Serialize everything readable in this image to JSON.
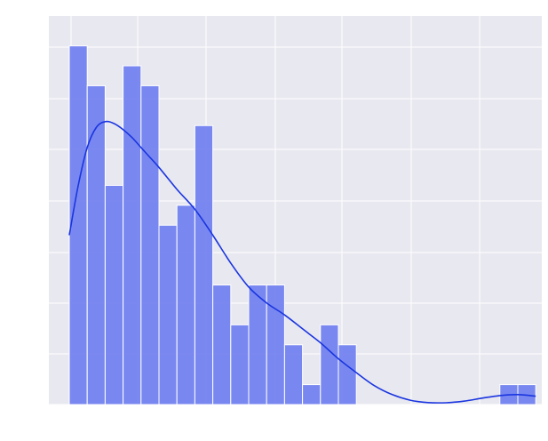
{
  "chart_data": {
    "type": "bar",
    "title": "",
    "xlabel": "",
    "ylabel": "",
    "grid": true,
    "legend": "none",
    "bar_color": "#6f7ff0",
    "bar_edge_color": "#ffffff",
    "kde_color": "#1a35e0",
    "plot_background": "#e8e8f0",
    "x_range": [
      0,
      25
    ],
    "y_range": [
      0,
      19.5
    ],
    "x_ticks": [
      0,
      1,
      2,
      3,
      4,
      5,
      6
    ],
    "y_ticks": [
      0,
      1,
      2,
      3,
      4,
      5,
      6,
      7
    ],
    "x_tick_labels": [
      "",
      "",
      "",
      "",
      "",
      "",
      ""
    ],
    "y_tick_labels": [
      "",
      "",
      "",
      "",
      "",
      "",
      "",
      ""
    ],
    "bins": [
      {
        "start": 0,
        "end": 1,
        "count": 18
      },
      {
        "start": 1,
        "end": 2,
        "count": 16
      },
      {
        "start": 2,
        "end": 3,
        "count": 11
      },
      {
        "start": 3,
        "end": 4,
        "count": 17
      },
      {
        "start": 4,
        "end": 5,
        "count": 16
      },
      {
        "start": 5,
        "end": 6,
        "count": 9
      },
      {
        "start": 6,
        "end": 7,
        "count": 10
      },
      {
        "start": 7,
        "end": 8,
        "count": 14
      },
      {
        "start": 8,
        "end": 9,
        "count": 6
      },
      {
        "start": 9,
        "end": 10,
        "count": 4
      },
      {
        "start": 10,
        "end": 11,
        "count": 6
      },
      {
        "start": 11,
        "end": 12,
        "count": 6
      },
      {
        "start": 12,
        "end": 13,
        "count": 3
      },
      {
        "start": 13,
        "end": 14,
        "count": 1
      },
      {
        "start": 14,
        "end": 15,
        "count": 4
      },
      {
        "start": 15,
        "end": 16,
        "count": 3
      },
      {
        "start": 24,
        "end": 25,
        "count": 1
      },
      {
        "start": 25,
        "end": 26,
        "count": 1
      }
    ],
    "kde": {
      "x": [
        0,
        0.5,
        1,
        1.5,
        2,
        2.5,
        3,
        3.5,
        4,
        4.5,
        5,
        6,
        7,
        8,
        9,
        10,
        11,
        12,
        13,
        14,
        15,
        16,
        17,
        18,
        19,
        20,
        21,
        22,
        23,
        24,
        25,
        26
      ],
      "y": [
        8.5,
        11.0,
        12.9,
        13.9,
        14.2,
        14.1,
        13.8,
        13.4,
        12.9,
        12.4,
        11.9,
        10.8,
        9.8,
        8.5,
        7.1,
        5.9,
        5.1,
        4.5,
        3.8,
        3.1,
        2.3,
        1.6,
        0.95,
        0.5,
        0.22,
        0.1,
        0.09,
        0.17,
        0.32,
        0.45,
        0.5,
        0.42
      ]
    }
  }
}
